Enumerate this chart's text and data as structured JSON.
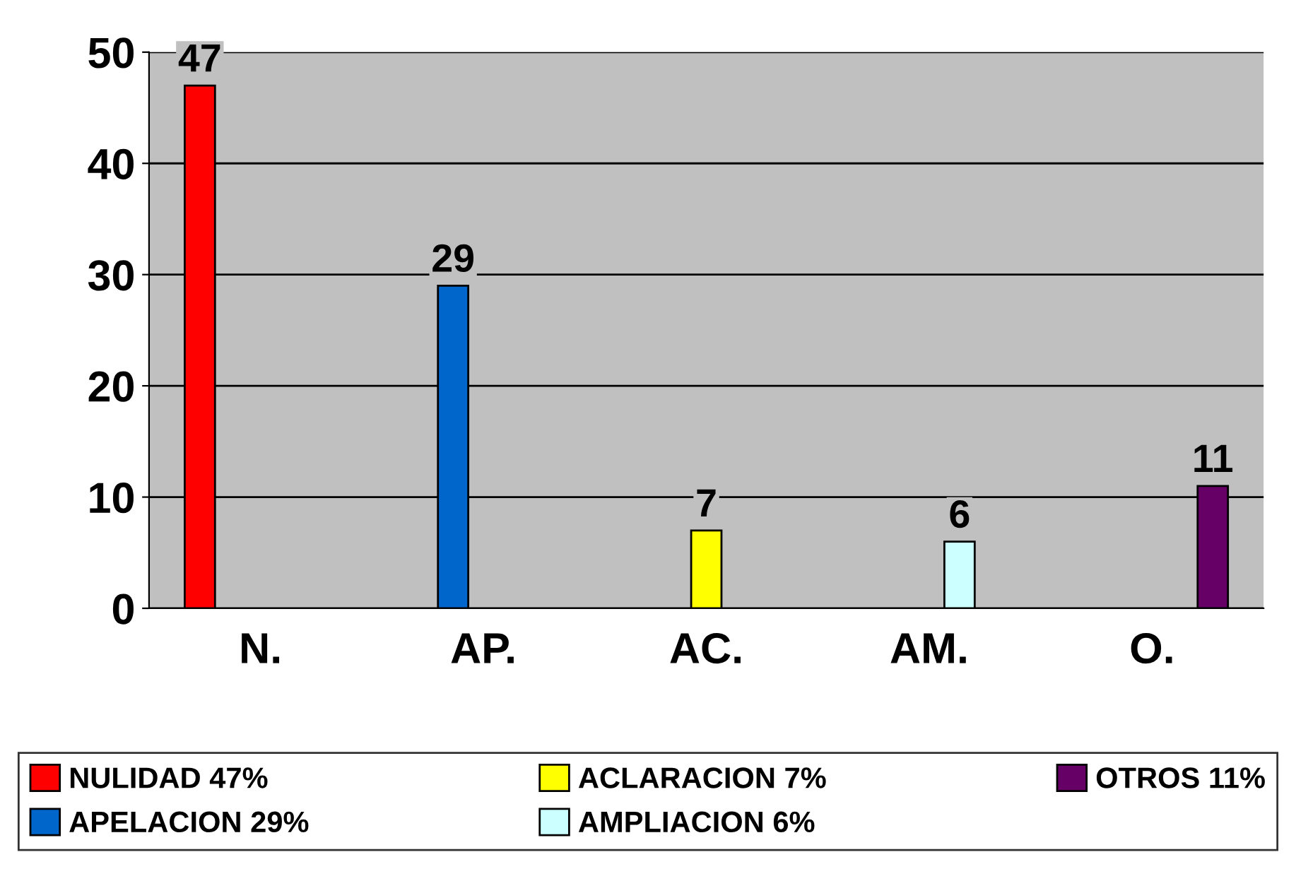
{
  "chart_data": {
    "type": "bar",
    "categories": [
      "N.",
      "AP.",
      "AC.",
      "AM.",
      "O."
    ],
    "series": [
      {
        "name": "NULIDAD 47%",
        "color": "#ff0000",
        "values": [
          47,
          null,
          null,
          null,
          null
        ]
      },
      {
        "name": "APELACION 29%",
        "color": "#0066cc",
        "values": [
          null,
          29,
          null,
          null,
          null
        ]
      },
      {
        "name": "ACLARACION 7%",
        "color": "#ffff00",
        "values": [
          null,
          null,
          7,
          null,
          null
        ]
      },
      {
        "name": "AMPLIACION 6%",
        "color": "#ccffff",
        "values": [
          null,
          null,
          null,
          6,
          null
        ]
      },
      {
        "name": "OTROS 11%",
        "color": "#660066",
        "values": [
          null,
          null,
          null,
          null,
          11
        ]
      }
    ],
    "ylim": [
      0,
      50
    ],
    "yticks": [
      0,
      10,
      20,
      30,
      40,
      50
    ],
    "grid": "y",
    "legend": "bottom",
    "data_labels": true
  }
}
